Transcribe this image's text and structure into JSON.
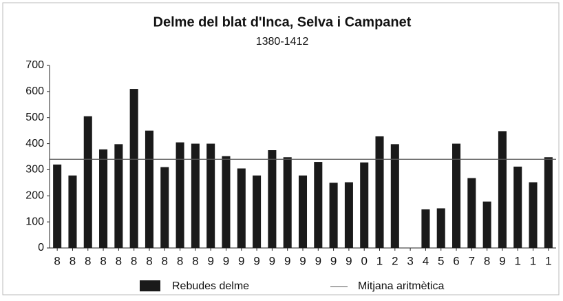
{
  "chart_data": {
    "type": "bar",
    "title": "Delme del blat d'Inca, Selva i Campanet",
    "subtitle": "1380-1412",
    "categories": [
      "8",
      "8",
      "8",
      "8",
      "8",
      "8",
      "8",
      "8",
      "8",
      "8",
      "9",
      "9",
      "9",
      "9",
      "9",
      "9",
      "9",
      "9",
      "9",
      "9",
      "0",
      "1",
      "2",
      "3",
      "4",
      "5",
      "6",
      "7",
      "8",
      "9",
      "1",
      "1",
      "1"
    ],
    "series": [
      {
        "name": "Rebudes delme",
        "color": "#1a1a1a",
        "values": [
          320,
          278,
          505,
          378,
          398,
          610,
          450,
          310,
          405,
          400,
          400,
          352,
          305,
          278,
          375,
          348,
          278,
          330,
          250,
          252,
          328,
          428,
          398,
          0,
          148,
          152,
          400,
          268,
          178,
          448,
          312,
          252,
          348
        ]
      }
    ],
    "average": {
      "name": "Mitjana aritmètica",
      "value": 340,
      "color": "#555555"
    },
    "ylim": [
      0,
      700
    ],
    "yticks": [
      0,
      100,
      200,
      300,
      400,
      500,
      600,
      700
    ],
    "grid": false
  }
}
